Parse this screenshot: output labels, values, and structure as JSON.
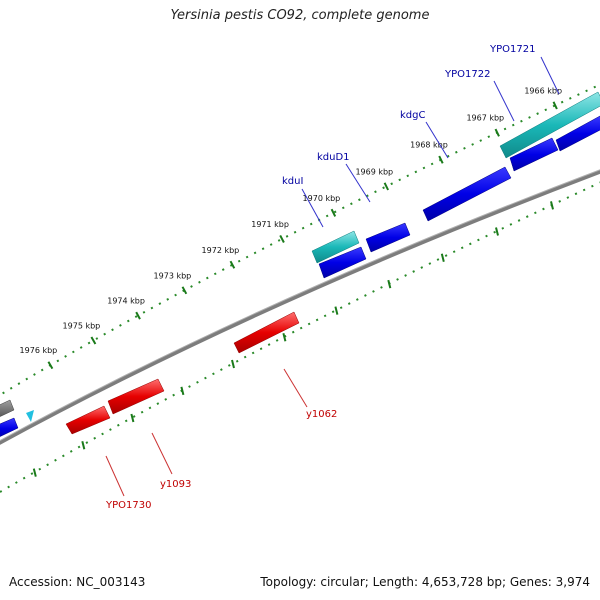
{
  "title": "Yersinia pestis CO92, complete genome",
  "footer": {
    "accession": "Accession: NC_003143",
    "summary": "Topology: circular; Length: 4,653,728 bp; Genes: 3,974"
  },
  "colors": {
    "background": "#ffffff",
    "backbone": "#808080",
    "tick_major": "#1a7a1a",
    "tick_minor": "#2a8a2a",
    "blue_gene": "#0000e6",
    "cyan_gene": "#1ab8b8",
    "red_gene": "#e60000",
    "gray_gene": "#707070",
    "label_blue": "#0000a0",
    "label_red": "#c00000"
  },
  "scale": {
    "unit": "kbp",
    "ticks": [
      {
        "kbp": 1966,
        "label": "1966 kbp"
      },
      {
        "kbp": 1967,
        "label": "1967 kbp"
      },
      {
        "kbp": 1968,
        "label": "1968 kbp"
      },
      {
        "kbp": 1969,
        "label": "1969 kbp"
      },
      {
        "kbp": 1970,
        "label": "1970 kbp"
      },
      {
        "kbp": 1971,
        "label": "1971 kbp"
      },
      {
        "kbp": 1972,
        "label": "1972 kbp"
      },
      {
        "kbp": 1973,
        "label": "1973 kbp"
      },
      {
        "kbp": 1974,
        "label": "1974 kbp"
      },
      {
        "kbp": 1975,
        "label": "1975 kbp"
      },
      {
        "kbp": 1976,
        "label": "1976 kbp"
      }
    ]
  },
  "labels_top": [
    "YPO1721",
    "YPO1722",
    "kdgC",
    "kduD1",
    "kduI"
  ],
  "labels_bottom": [
    "y1062",
    "y1093",
    "YPO1730"
  ],
  "strands": {
    "outer_cyan": [
      "1966-1967.8 (YPO1721/YPO1722)",
      "1971.3-1971.8 (kduI)"
    ],
    "outer_blue": [
      "1966.3-1967.0",
      "1967.1-1967.7",
      "1968.3-1969.6 (kdgC)",
      "1970.1-1970.7 (kduD1)",
      "1971.2-1971.7"
    ],
    "inner_red": [
      "1973.2-1974.2 (y1062)",
      "1976.6-1977.3 (y1093)",
      "1977.4-1978.0 (YPO1730)"
    ]
  }
}
